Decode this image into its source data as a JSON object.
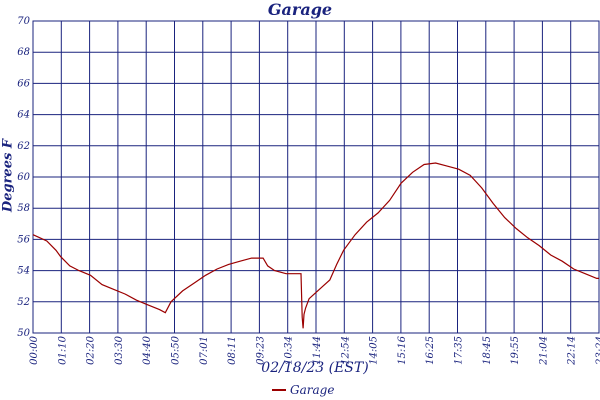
{
  "chart_data": {
    "type": "line",
    "title": "Garage",
    "xlabel": "02/18/23 (EST)",
    "ylabel": "Degrees F",
    "ylim": [
      50,
      70
    ],
    "yticks": [
      50,
      52,
      54,
      56,
      58,
      60,
      62,
      64,
      66,
      68,
      70
    ],
    "xtick_labels": [
      "00:00",
      "01:10",
      "02:20",
      "03:30",
      "04:40",
      "05:50",
      "07:01",
      "08:11",
      "09:23",
      "10:34",
      "11:44",
      "12:54",
      "14:05",
      "15:16",
      "16:25",
      "17:35",
      "18:45",
      "19:55",
      "21:04",
      "22:14",
      "23:24"
    ],
    "grid": true,
    "legend_position": "bottom-center",
    "series": [
      {
        "name": "Garage",
        "color": "#9b0000",
        "points": [
          [
            0,
            56.3
          ],
          [
            0.3,
            56.1
          ],
          [
            0.6,
            55.9
          ],
          [
            1.0,
            55.3
          ],
          [
            1.2,
            54.9
          ],
          [
            1.6,
            54.3
          ],
          [
            2.0,
            54.0
          ],
          [
            2.5,
            53.7
          ],
          [
            3.0,
            53.1
          ],
          [
            3.5,
            52.8
          ],
          [
            4.0,
            52.5
          ],
          [
            4.5,
            52.1
          ],
          [
            5.0,
            51.8
          ],
          [
            5.5,
            51.5
          ],
          [
            5.75,
            51.3
          ],
          [
            6.0,
            52.0
          ],
          [
            6.5,
            52.7
          ],
          [
            7.0,
            53.2
          ],
          [
            7.5,
            53.7
          ],
          [
            8.0,
            54.1
          ],
          [
            8.5,
            54.4
          ],
          [
            9.0,
            54.6
          ],
          [
            9.5,
            54.8
          ],
          [
            10.0,
            54.8
          ],
          [
            10.2,
            54.3
          ],
          [
            10.5,
            54.0
          ],
          [
            11.0,
            53.8
          ],
          [
            11.5,
            53.8
          ],
          [
            11.65,
            53.8
          ],
          [
            11.7,
            51.0
          ],
          [
            11.74,
            50.3
          ],
          [
            11.78,
            51.2
          ],
          [
            11.85,
            51.6
          ],
          [
            12.0,
            52.2
          ],
          [
            12.3,
            52.6
          ],
          [
            12.6,
            53.0
          ],
          [
            12.9,
            53.4
          ],
          [
            13.2,
            54.4
          ],
          [
            13.5,
            55.3
          ],
          [
            14.0,
            56.3
          ],
          [
            14.5,
            57.1
          ],
          [
            15.0,
            57.7
          ],
          [
            15.5,
            58.5
          ],
          [
            16.0,
            59.6
          ],
          [
            16.5,
            60.3
          ],
          [
            17.0,
            60.8
          ],
          [
            17.5,
            60.9
          ],
          [
            18.0,
            60.7
          ],
          [
            18.5,
            60.5
          ],
          [
            19.0,
            60.1
          ],
          [
            19.5,
            59.3
          ],
          [
            20.0,
            58.3
          ],
          [
            20.5,
            57.4
          ],
          [
            21.0,
            56.7
          ],
          [
            21.5,
            56.1
          ],
          [
            22.0,
            55.6
          ],
          [
            22.5,
            55.0
          ],
          [
            23.0,
            54.6
          ],
          [
            23.5,
            54.1
          ],
          [
            24.0,
            53.8
          ],
          [
            24.5,
            53.5
          ],
          [
            24.6,
            53.5
          ]
        ]
      }
    ]
  }
}
